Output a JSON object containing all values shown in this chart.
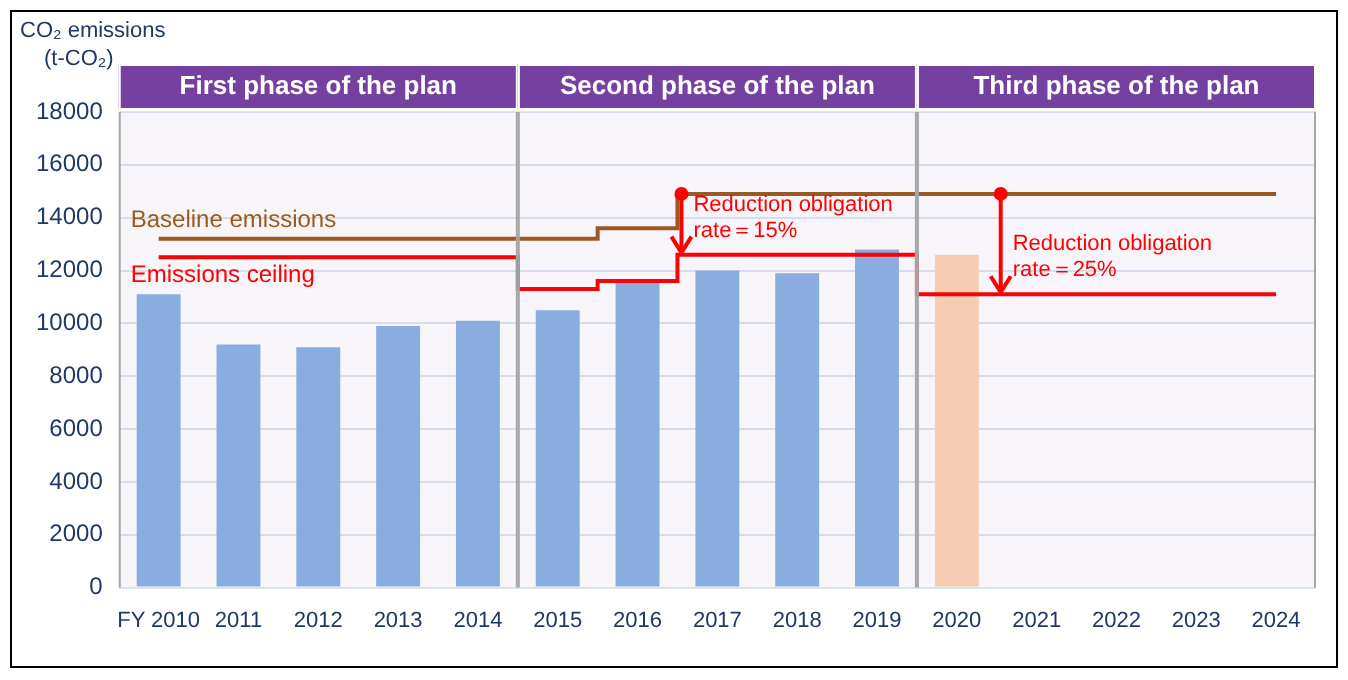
{
  "chart_data": {
    "type": "bar",
    "ylabel": "CO₂ emissions (t-CO₂)",
    "categories": [
      "FY 2010",
      "2011",
      "2012",
      "2013",
      "2014",
      "2015",
      "2016",
      "2017",
      "2018",
      "2019",
      "2020",
      "2021",
      "2022",
      "2023",
      "2024"
    ],
    "series": [
      {
        "colors": [
          "#8db3e2",
          "#8db3e2",
          "#8db3e2",
          "#8db3e2",
          "#8db3e2",
          "#8db3e2",
          "#8db3e2",
          "#8db3e2",
          "#8db3e2",
          "#8db3e2",
          "#fcd5b4",
          null,
          null,
          null,
          null
        ],
        "values": [
          11100,
          9200,
          9100,
          9900,
          10100,
          10500,
          11600,
          12000,
          11900,
          12800,
          12600,
          null,
          null,
          null,
          null
        ]
      },
      {
        "type": "step",
        "name": "Baseline emissions",
        "color": "#9c5b1c",
        "values": [
          13200,
          13200,
          13200,
          13200,
          13200,
          13200,
          13600,
          14900,
          14900,
          14900,
          14900,
          14900,
          14900,
          14900,
          14900
        ]
      },
      {
        "type": "step",
        "name": "Emissions ceiling",
        "color": "#ff0000",
        "values": [
          12500,
          12500,
          12500,
          12500,
          12500,
          11300,
          11600,
          12600,
          12600,
          12600,
          11100,
          11100,
          11100,
          11100,
          11100
        ]
      }
    ],
    "ylim": [
      0,
      18000
    ],
    "yticks": [
      0,
      2000,
      4000,
      6000,
      8000,
      10000,
      12000,
      14000,
      16000,
      18000
    ],
    "grid": "y",
    "legend": false,
    "bands": [
      {
        "axis": "x",
        "from": "FY 2010",
        "to": "2014",
        "label": "First phase of the plan",
        "color": "#7540a0"
      },
      {
        "axis": "x",
        "from": "2015",
        "to": "2019",
        "label": "Second phase of the plan",
        "color": "#7540a0"
      },
      {
        "axis": "x",
        "from": "2020",
        "to": "2024",
        "label": "Third phase of the plan",
        "color": "#7540a0"
      }
    ],
    "annotations": [
      {
        "text": "Reduction obligation rate＝15%",
        "x": "2017",
        "y": 14900
      },
      {
        "text": "Reduction obligation rate＝25%",
        "x": "2021",
        "y": 14900
      }
    ]
  }
}
